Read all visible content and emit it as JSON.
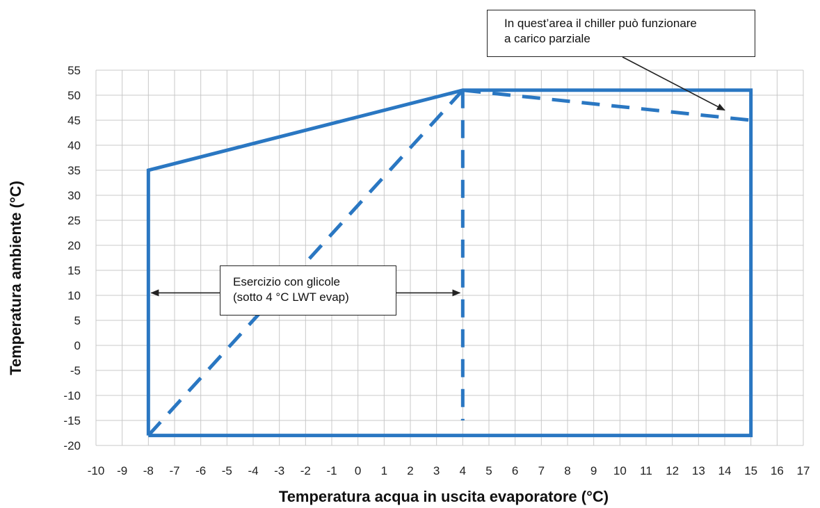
{
  "chart_data": {
    "type": "line",
    "title": "",
    "xlabel": "Temperatura acqua in uscita evaporatore (°C)",
    "ylabel": "Temperatura ambiente (°C)",
    "xlim": [
      -10,
      17
    ],
    "ylim": [
      -20,
      55
    ],
    "x_ticks": [
      "-10",
      "-9",
      "-8",
      "-7",
      "-6",
      "-5",
      "-4",
      "-3",
      "-2",
      "-1",
      "0",
      "1",
      "2",
      "3",
      "4",
      "5",
      "6",
      "7",
      "8",
      "9",
      "10",
      "11",
      "12",
      "13",
      "14",
      "15",
      "16",
      "17"
    ],
    "y_ticks": [
      "55",
      "50",
      "45",
      "40",
      "35",
      "30",
      "25",
      "20",
      "15",
      "10",
      "5",
      "0",
      "-5",
      "-10",
      "-15",
      "-20"
    ],
    "grid": true,
    "colors": {
      "envelope": "#2a77c2",
      "grid": "#c8c8c8",
      "annotation": "#222222"
    },
    "series": [
      {
        "style": "solid",
        "points": [
          [
            -8,
            -18
          ],
          [
            -8,
            35
          ],
          [
            4,
            51
          ],
          [
            15,
            51
          ],
          [
            15,
            -18
          ],
          [
            -8,
            -18
          ]
        ]
      },
      {
        "style": "dashed",
        "points": [
          [
            -8,
            -18
          ],
          [
            4,
            51
          ]
        ]
      },
      {
        "style": "dashed",
        "points": [
          [
            4,
            51
          ],
          [
            4,
            -15
          ]
        ]
      },
      {
        "style": "dashed",
        "points": [
          [
            4,
            51
          ],
          [
            15,
            45
          ]
        ]
      }
    ],
    "annotations": [
      {
        "id": "partial-load",
        "lines": [
          "In quest’area il chiller può funzionare",
          "a carico parziale"
        ],
        "arrow_to": [
          14,
          47
        ]
      },
      {
        "id": "glycol",
        "lines": [
          "Esercizio con glicole",
          "(sotto 4 °C LWT evap)"
        ],
        "arrow_from": [
          -8,
          10.5
        ],
        "arrow_to": [
          4,
          10.5
        ]
      }
    ]
  }
}
